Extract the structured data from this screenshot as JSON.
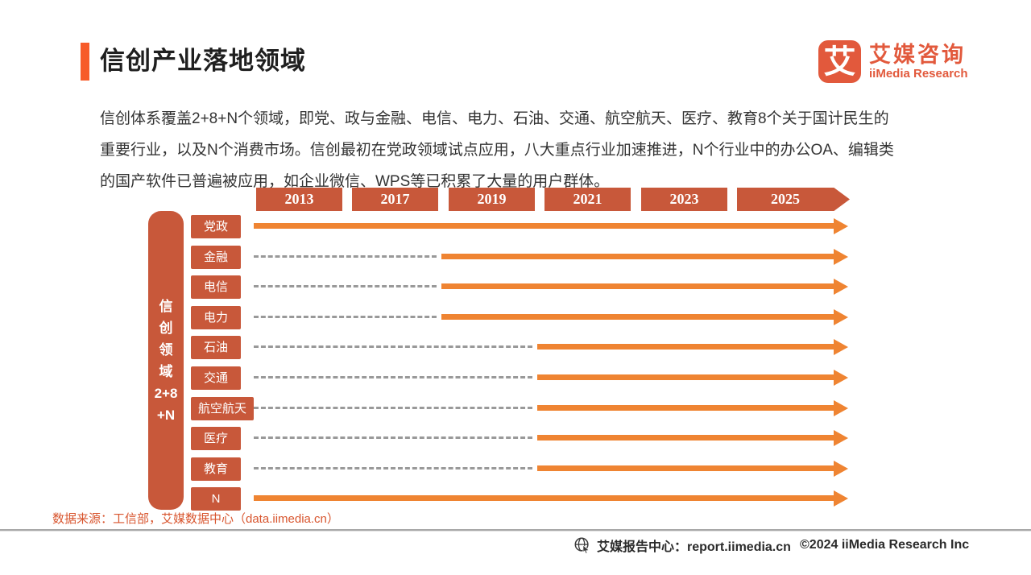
{
  "header": {
    "title": "信创产业落地领域"
  },
  "logo": {
    "mark": "艾",
    "name_cn": "艾媒咨询",
    "name_en": "iiMedia Research"
  },
  "intro": {
    "lines": [
      "信创体系覆盖2+8+N个领域，即党、政与金融、电信、电力、石油、交通、航空航天、医疗、教育8个关于国计民生的",
      "重要行业，以及N个消费市场。信创最初在党政领域试点应用，八大重点行业加速推进，N个行业中的办公OA、编辑类",
      "的国产软件已普遍被应用，如企业微信、WPS等已积累了大量的用户群体。"
    ]
  },
  "chart_data": {
    "type": "timeline",
    "title": "信创产业落地领域",
    "years": [
      "2013",
      "2017",
      "2019",
      "2021",
      "2023",
      "2025"
    ],
    "axis_label": "信创领域2+8+N",
    "axis_lines": [
      "信",
      "创",
      "领",
      "域",
      "2+8",
      "+N"
    ],
    "rows": [
      {
        "label": "党政",
        "start_year": 2013
      },
      {
        "label": "金融",
        "start_year": 2019
      },
      {
        "label": "电信",
        "start_year": 2019
      },
      {
        "label": "电力",
        "start_year": 2019
      },
      {
        "label": "石油",
        "start_year": 2021
      },
      {
        "label": "交通",
        "start_year": 2021
      },
      {
        "label": "航空航天",
        "start_year": 2021
      },
      {
        "label": "医疗",
        "start_year": 2021
      },
      {
        "label": "教育",
        "start_year": 2021
      },
      {
        "label": "N",
        "start_year": 2013
      }
    ],
    "legend_hint": "dashed segment = before adoption start, solid orange arrow = adoption period continuing to 2025",
    "colors": {
      "category_box": "#c8583a",
      "arrow": "#ef8432",
      "dash": "#999999",
      "accent_bar": "#f75b29",
      "logo": "#e2593c",
      "source_text": "#d8552e"
    }
  },
  "source": {
    "text": "数据来源：工信部，艾媒数据中心（data.iimedia.cn）"
  },
  "footer": {
    "report_center": "艾媒报告中心：report.iimedia.cn",
    "copyright": "©2024  iiMedia Research Inc"
  }
}
